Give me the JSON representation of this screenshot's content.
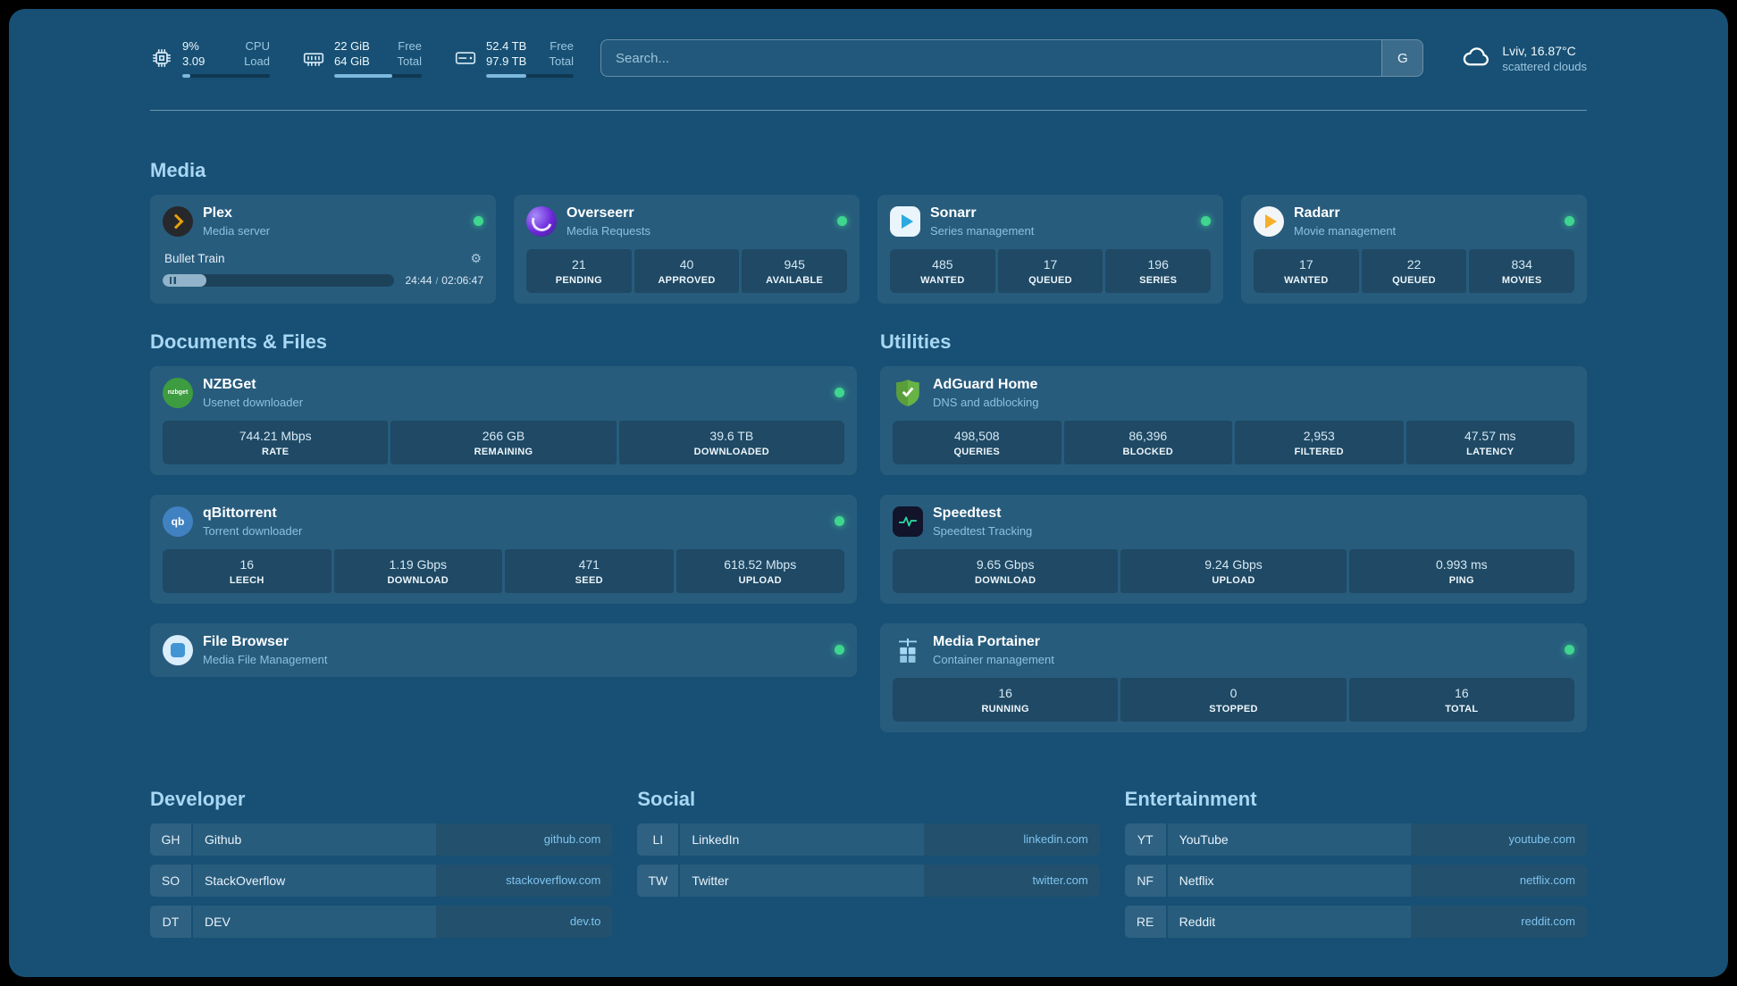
{
  "theme": {
    "page_bg": "#175074",
    "card_bg_overlay": "rgba(255,255,255,0.07)",
    "stat_bg_overlay": "rgba(0,0,0,0.20)",
    "heading_color": "#a9d7f3",
    "muted_text": "#9dc6e0",
    "link_color": "#80c4ee",
    "status_online": "#3fd68f",
    "progress_fill": "#7db8de"
  },
  "icons": {
    "gear": "⚙"
  },
  "header": {
    "resources": [
      {
        "icon": "cpu-icon",
        "values": [
          "9%",
          "3.09"
        ],
        "labels": [
          "CPU",
          "Load"
        ],
        "progress_pct": 9
      },
      {
        "icon": "memory-icon",
        "values": [
          "22 GiB",
          "64 GiB"
        ],
        "labels": [
          "Free",
          "Total"
        ],
        "progress_pct": 66
      },
      {
        "icon": "disk-icon",
        "values": [
          "52.4 TB",
          "97.9 TB"
        ],
        "labels": [
          "Free",
          "Total"
        ],
        "progress_pct": 46
      }
    ],
    "search": {
      "placeholder": "Search...",
      "provider_label": "G"
    },
    "weather": {
      "location_temp": "Lviv, 16.87°C",
      "condition": "scattered clouds"
    }
  },
  "groups": [
    {
      "title": "Media",
      "services": [
        {
          "name": "Plex",
          "subtitle": "Media server",
          "status": "online",
          "player": {
            "title": "Bullet Train",
            "elapsed": "24:44",
            "separator": "/",
            "duration": "02:06:47",
            "progress_pct": 19
          }
        },
        {
          "name": "Overseerr",
          "subtitle": "Media Requests",
          "status": "online",
          "stats": [
            {
              "value": "21",
              "label": "PENDING"
            },
            {
              "value": "40",
              "label": "APPROVED"
            },
            {
              "value": "945",
              "label": "AVAILABLE"
            }
          ]
        },
        {
          "name": "Sonarr",
          "subtitle": "Series management",
          "status": "online",
          "stats": [
            {
              "value": "485",
              "label": "WANTED"
            },
            {
              "value": "17",
              "label": "QUEUED"
            },
            {
              "value": "196",
              "label": "SERIES"
            }
          ]
        },
        {
          "name": "Radarr",
          "subtitle": "Movie management",
          "status": "online",
          "stats": [
            {
              "value": "17",
              "label": "WANTED"
            },
            {
              "value": "22",
              "label": "QUEUED"
            },
            {
              "value": "834",
              "label": "MOVIES"
            }
          ]
        }
      ]
    },
    {
      "title": "Documents & Files",
      "services": [
        {
          "name": "NZBGet",
          "subtitle": "Usenet downloader",
          "status": "online",
          "icon_text": "nzbget",
          "stats": [
            {
              "value": "744.21 Mbps",
              "label": "RATE"
            },
            {
              "value": "266 GB",
              "label": "REMAINING"
            },
            {
              "value": "39.6 TB",
              "label": "DOWNLOADED"
            }
          ]
        },
        {
          "name": "qBittorrent",
          "subtitle": "Torrent downloader",
          "status": "online",
          "icon_text": "qb",
          "stats": [
            {
              "value": "16",
              "label": "LEECH"
            },
            {
              "value": "1.19 Gbps",
              "label": "DOWNLOAD"
            },
            {
              "value": "471",
              "label": "SEED"
            },
            {
              "value": "618.52 Mbps",
              "label": "UPLOAD"
            }
          ]
        },
        {
          "name": "File Browser",
          "subtitle": "Media File Management",
          "status": "online",
          "stats": []
        }
      ]
    },
    {
      "title": "Utilities",
      "services": [
        {
          "name": "AdGuard Home",
          "subtitle": "DNS and adblocking",
          "status": "none",
          "stats": [
            {
              "value": "498,508",
              "label": "QUERIES"
            },
            {
              "value": "86,396",
              "label": "BLOCKED"
            },
            {
              "value": "2,953",
              "label": "FILTERED"
            },
            {
              "value": "47.57 ms",
              "label": "LATENCY"
            }
          ]
        },
        {
          "name": "Speedtest",
          "subtitle": "Speedtest Tracking",
          "status": "none",
          "stats": [
            {
              "value": "9.65 Gbps",
              "label": "DOWNLOAD"
            },
            {
              "value": "9.24 Gbps",
              "label": "UPLOAD"
            },
            {
              "value": "0.993 ms",
              "label": "PING"
            }
          ]
        },
        {
          "name": "Media Portainer",
          "subtitle": "Container management",
          "status": "online",
          "stats": [
            {
              "value": "16",
              "label": "RUNNING"
            },
            {
              "value": "0",
              "label": "STOPPED"
            },
            {
              "value": "16",
              "label": "TOTAL"
            }
          ]
        }
      ]
    }
  ],
  "bookmark_groups": [
    {
      "title": "Developer",
      "items": [
        {
          "abbr": "GH",
          "name": "Github",
          "domain": "github.com"
        },
        {
          "abbr": "SO",
          "name": "StackOverflow",
          "domain": "stackoverflow.com"
        },
        {
          "abbr": "DT",
          "name": "DEV",
          "domain": "dev.to"
        }
      ]
    },
    {
      "title": "Social",
      "items": [
        {
          "abbr": "LI",
          "name": "LinkedIn",
          "domain": "linkedin.com"
        },
        {
          "abbr": "TW",
          "name": "Twitter",
          "domain": "twitter.com"
        }
      ]
    },
    {
      "title": "Entertainment",
      "items": [
        {
          "abbr": "YT",
          "name": "YouTube",
          "domain": "youtube.com"
        },
        {
          "abbr": "NF",
          "name": "Netflix",
          "domain": "netflix.com"
        },
        {
          "abbr": "RE",
          "name": "Reddit",
          "domain": "reddit.com"
        }
      ]
    }
  ]
}
